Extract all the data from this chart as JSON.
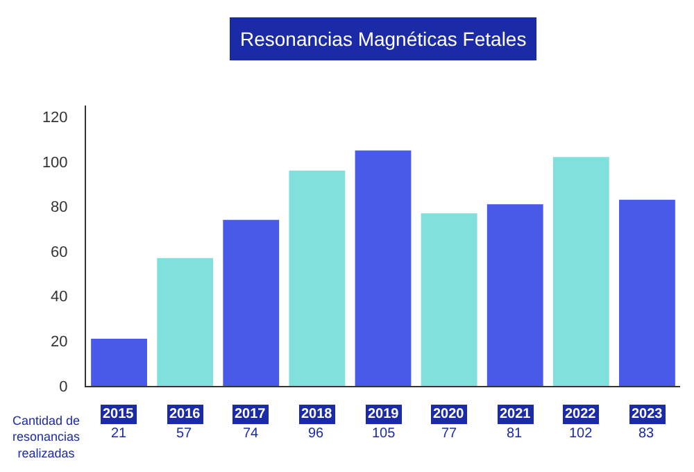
{
  "chart_data": {
    "type": "bar",
    "title": "Resonancias Magnéticas Fetales",
    "categories": [
      "2015",
      "2016",
      "2017",
      "2018",
      "2019",
      "2020",
      "2021",
      "2022",
      "2023"
    ],
    "values": [
      21,
      57,
      74,
      96,
      105,
      77,
      81,
      102,
      83
    ],
    "colors": [
      "#4a5ae8",
      "#7fe0dc",
      "#4a5ae8",
      "#7fe0dc",
      "#4a5ae8",
      "#7fe0dc",
      "#4a5ae8",
      "#7fe0dc",
      "#4a5ae8"
    ],
    "ylim": [
      0,
      125
    ],
    "yticks": [
      0,
      20,
      40,
      60,
      80,
      100,
      120
    ],
    "grid": false,
    "data_labels": true,
    "annotations": [
      "Cantidad de resonancias realizadas"
    ]
  }
}
